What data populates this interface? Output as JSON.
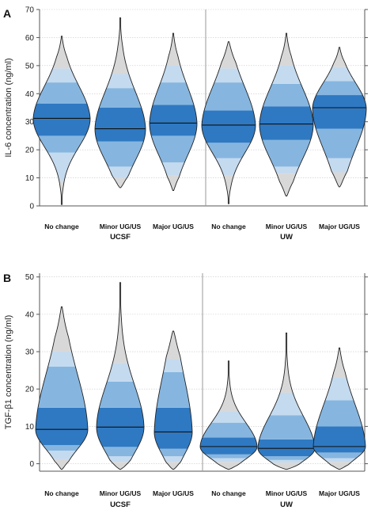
{
  "colors": {
    "band_outer": "#d8d8d8",
    "band_light": "#c4daef",
    "band_mid": "#86b6e0",
    "band_dark": "#2f79c2",
    "median": "#111111",
    "axis": "#555555",
    "grid": "#c8c8c8"
  },
  "chart_data": [
    {
      "type": "violin",
      "panel_label": "A",
      "ylabel": "IL-6 concentration (ng/ml)",
      "ylim": [
        0,
        70
      ],
      "yticks": [
        0,
        10,
        20,
        30,
        40,
        50,
        60,
        70
      ],
      "grid": "horizontal",
      "categories": [
        "No change",
        "Minor UG/US",
        "Major UG/US",
        "No change",
        "Minor UG/US",
        "Major UG/US"
      ],
      "groups": [
        {
          "name": "UCSF",
          "category_index": [
            0,
            1,
            2
          ]
        },
        {
          "name": "UW",
          "category_index": [
            3,
            4,
            5
          ]
        }
      ],
      "violins": [
        {
          "min": 0.5,
          "max": 60.5,
          "median": 31.2,
          "quantiles": [
            9,
            19,
            25,
            36.5,
            44,
            49
          ]
        },
        {
          "min": 6.5,
          "max": 67,
          "median": 27.5,
          "quantiles": [
            10,
            14,
            23,
            35,
            42,
            47
          ]
        },
        {
          "min": 5.5,
          "max": 61.5,
          "median": 29.5,
          "quantiles": [
            11,
            15.5,
            25,
            36,
            44,
            50
          ]
        },
        {
          "min": 0.8,
          "max": 58.5,
          "median": 28.8,
          "quantiles": [
            11,
            17,
            22.5,
            34,
            44,
            49
          ]
        },
        {
          "min": 3.5,
          "max": 61.5,
          "median": 29.2,
          "quantiles": [
            11.5,
            14,
            23.5,
            35.5,
            43.5,
            50
          ]
        },
        {
          "min": 6.8,
          "max": 56.5,
          "median": 35,
          "quantiles": [
            12,
            17,
            27.5,
            39.5,
            44.5,
            49.5
          ]
        }
      ]
    },
    {
      "type": "violin",
      "panel_label": "B",
      "ylabel": "TGF-β1 concentration (ng/ml)",
      "ylim": [
        -2,
        51
      ],
      "yticks": [
        0,
        10,
        20,
        30,
        40,
        50
      ],
      "grid": "horizontal",
      "categories": [
        "No change",
        "Minor UG/US",
        "Major UG/US",
        "No change",
        "Minor UG/US",
        "Major UG/US"
      ],
      "groups": [
        {
          "name": "UCSF",
          "category_index": [
            0,
            1,
            2
          ]
        },
        {
          "name": "UW",
          "category_index": [
            3,
            4,
            5
          ]
        }
      ],
      "violins": [
        {
          "min": -1.5,
          "max": 42,
          "median": 9.2,
          "quantiles": [
            1.2,
            3.5,
            5,
            15,
            26,
            30
          ]
        },
        {
          "min": -1.5,
          "max": 48.5,
          "median": 9.8,
          "quantiles": [
            0.5,
            2,
            4.5,
            15,
            22,
            27
          ]
        },
        {
          "min": -1.5,
          "max": 35.5,
          "median": 8.5,
          "quantiles": [
            0.5,
            2,
            4,
            15,
            24.5,
            28
          ]
        },
        {
          "min": -1.5,
          "max": 27.5,
          "median": 4.6,
          "quantiles": [
            0.5,
            1.5,
            2.5,
            7,
            11,
            14
          ]
        },
        {
          "min": -1.5,
          "max": 35,
          "median": 4.1,
          "quantiles": [
            0.3,
            1,
            2,
            6.5,
            13,
            19
          ]
        },
        {
          "min": -1.5,
          "max": 31,
          "median": 4.6,
          "quantiles": [
            0.5,
            1.5,
            3,
            10,
            17,
            23
          ]
        }
      ]
    }
  ]
}
